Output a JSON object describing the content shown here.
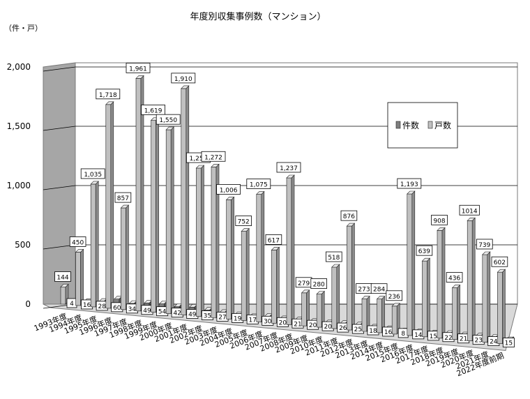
{
  "chart_data": {
    "type": "bar",
    "title": "年度別収集事例数（マンション）",
    "ylabel": "（件・戸）",
    "ylim": [
      0,
      2000
    ],
    "yticks": [
      "0",
      "500",
      "1,000",
      "1,500",
      "2,000"
    ],
    "grid": true,
    "legend_position": "top-right",
    "categories": [
      "1993年度",
      "1994年度",
      "1995年度",
      "1996年度",
      "1997年度",
      "1998年度",
      "1999年度",
      "2000年度",
      "2001年度",
      "2002年度",
      "2003年度",
      "2004年度",
      "2005年度",
      "2006年度",
      "2007年度",
      "2008年度",
      "2009年度",
      "2010年度",
      "2011年度",
      "2012年度",
      "2013年度",
      "2014年度",
      "2015年度",
      "2016年度",
      "2017年度",
      "2018年度",
      "2019年度",
      "2020年度",
      "2021年度",
      "2022年度前期"
    ],
    "series": [
      {
        "name": "件数",
        "color": "#7f7f7f",
        "values": [
          4,
          16,
          28,
          60,
          34,
          49,
          54,
          42,
          49,
          35,
          27,
          19,
          17,
          30,
          20,
          21,
          20,
          20,
          26,
          25,
          18,
          16,
          8,
          14,
          15,
          22,
          21,
          23,
          24,
          15
        ],
        "labels": [
          "4",
          "16",
          "28",
          "60",
          "34",
          "49",
          "54",
          "42",
          "49",
          "35",
          "27",
          "19",
          "17",
          "30",
          "20",
          "21",
          "20",
          "20",
          "26",
          "25",
          "18",
          "16",
          "8",
          "14",
          "15",
          "22",
          "21",
          "23",
          "24",
          "15"
        ]
      },
      {
        "name": "戸数",
        "color": "#c0c0c0",
        "values": [
          144,
          450,
          1035,
          1718,
          857,
          1961,
          1619,
          1550,
          1910,
          1250,
          1272,
          1006,
          752,
          1075,
          617,
          1237,
          279,
          280,
          518,
          876,
          273,
          284,
          236,
          1193,
          639,
          908,
          436,
          1014,
          739,
          602
        ],
        "labels": [
          "144",
          "450",
          "1,035",
          "1,718",
          "857",
          "1,961",
          "1,619",
          "1,550",
          "1,910",
          "1,250",
          "1,272",
          "1,006",
          "752",
          "1,075",
          "617",
          "1,237",
          "279",
          "280",
          "518",
          "876",
          "273",
          "284",
          "236",
          "1,193",
          "639",
          "908",
          "436",
          "1014",
          "739",
          "602"
        ]
      }
    ]
  }
}
